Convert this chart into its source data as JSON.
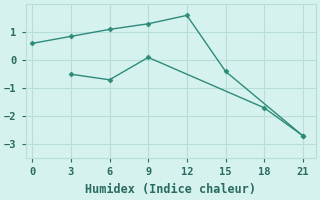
{
  "line1_x": [
    0,
    3,
    6,
    9,
    12,
    15,
    21
  ],
  "line1_y": [
    0.6,
    0.85,
    1.1,
    1.3,
    1.6,
    -0.4,
    -2.7
  ],
  "line2_x": [
    3,
    6,
    9,
    18,
    21
  ],
  "line2_y": [
    -0.5,
    -0.7,
    0.1,
    -1.7,
    -2.7
  ],
  "line_color": "#2e8b7a",
  "bg_color": "#d5f2ee",
  "grid_color": "#b8deda",
  "xlabel": "Humidex (Indice chaleur)",
  "xlim": [
    -0.5,
    22
  ],
  "ylim": [
    -3.5,
    2.0
  ],
  "xticks": [
    0,
    3,
    6,
    9,
    12,
    15,
    18,
    21
  ],
  "yticks": [
    -3,
    -2,
    -1,
    0,
    1
  ],
  "font_color": "#2a6b60",
  "tick_fontsize": 7.5,
  "xlabel_fontsize": 8.5
}
